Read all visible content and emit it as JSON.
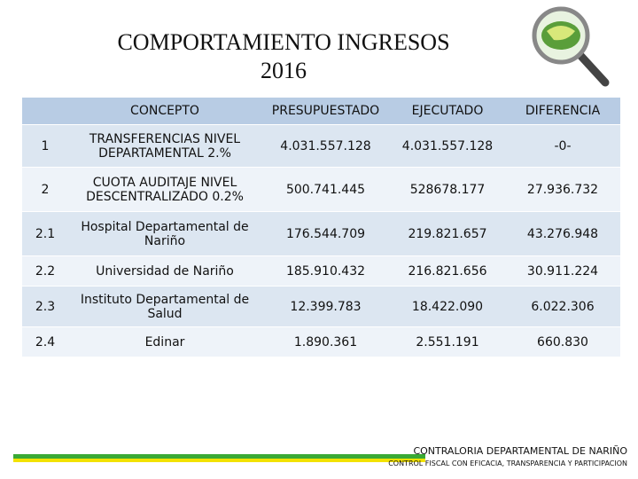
{
  "header": {
    "title_lines": [
      "COMPORTAMIENTO INGRESOS",
      "2016"
    ]
  },
  "table": {
    "columns": [
      "CONCEPTO",
      "PRESUPUESTADO",
      "EJECUTADO",
      "DIFERENCIA"
    ],
    "rows": [
      [
        "1",
        "TRANSFERENCIAS NIVEL DEPARTAMENTAL 2.%",
        "4.031.557.128",
        "4.031.557.128",
        "-0-"
      ],
      [
        "2",
        "CUOTA AUDITAJE NIVEL DESCENTRALIZADO 0.2%",
        "500.741.445",
        "528678.177",
        "27.936.732"
      ],
      [
        "2.1",
        "Hospital Departamental de Nariño",
        "176.544.709",
        "219.821.657",
        "43.276.948"
      ],
      [
        "2.2",
        "Universidad de Nariño",
        "185.910.432",
        "216.821.656",
        "30.911.224"
      ],
      [
        "2.3",
        "Instituto Departamental de Salud",
        "12.399.783",
        "18.422.090",
        "6.022.306"
      ],
      [
        "2.4",
        "Edinar",
        "1.890.361",
        "2.551.191",
        "660.830"
      ]
    ]
  },
  "footer": {
    "name": "CONTRALORIA DEPARTAMENTAL DE NARIÑO",
    "motto": "CONTROL FISCAL CON EFICACIA, TRANSPARENCIA Y PARTICIPACION"
  }
}
